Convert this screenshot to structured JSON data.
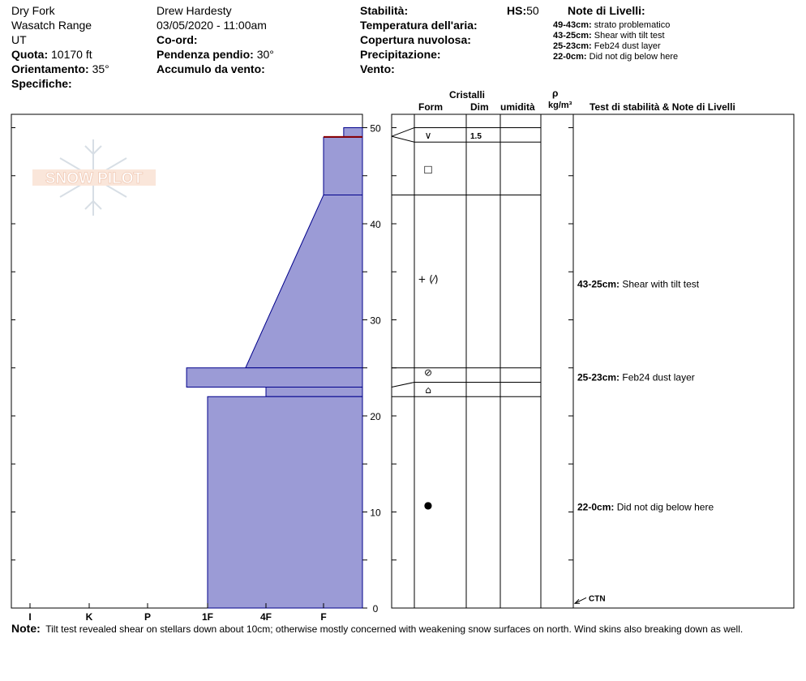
{
  "header": {
    "location": "Dry Fork",
    "range": "Wasatch Range",
    "state": "UT",
    "elevation_label": "Quota:",
    "elevation_value": "10170 ft",
    "aspect_label": "Orientamento:",
    "aspect_value": "35°",
    "specifics_label": "Specifiche:",
    "observer": "Drew Hardesty",
    "datetime": "03/05/2020 - 11:00am",
    "coord_label": "Co-ord:",
    "slope_label": "Pendenza pendio:",
    "slope_value": "30°",
    "wind_loading_label": "Accumulo da vento:",
    "stability_label": "Stabilità:",
    "air_temp_label": "Temperatura dell'aria:",
    "cloud_cover_label": "Copertura nuvolosa:",
    "precip_label": "Precipitazione:",
    "wind_label": "Vento:",
    "hs_label": "HS:",
    "hs_value": "50"
  },
  "layer_notes_panel": {
    "title": "Note di Livelli:",
    "items": [
      {
        "range": "49-43cm:",
        "text": "strato problematico"
      },
      {
        "range": "43-25cm:",
        "text": "Shear with tilt test"
      },
      {
        "range": "25-23cm:",
        "text": "Feb24 dust layer"
      },
      {
        "range": "22-0cm:",
        "text": "Did not dig below here"
      }
    ]
  },
  "table_headers": {
    "crystals": "Cristalli",
    "form": "Form",
    "size": "Dim",
    "moisture": "umidità",
    "rho": "ρ",
    "density_unit": "kg/m³",
    "stability_notes": "Test di stabilità & Note di Livelli"
  },
  "logo": {
    "text": "SNOW PILOT"
  },
  "chart_data": {
    "type": "area",
    "title": "",
    "xlabel": "",
    "ylabel": "",
    "ylim": [
      0,
      50
    ],
    "y_ticks": [
      0,
      10,
      20,
      30,
      40,
      50
    ],
    "x_categories": [
      "I",
      "K",
      "P",
      "1F",
      "4F",
      "F"
    ],
    "x_category_index": {
      "I": 0,
      "K": 1,
      "P": 2,
      "1F": 3,
      "4F": 4,
      "F": 5
    },
    "hardness_profile": [
      {
        "bottom": 49.0,
        "top": 50.0,
        "hardness_bottom": 5.35,
        "hardness_top": 5.35
      },
      {
        "bottom": 43.0,
        "top": 49.0,
        "hardness_bottom": 5.0,
        "hardness_top": 5.0
      },
      {
        "bottom": 25.0,
        "top": 43.0,
        "hardness_bottom": 3.65,
        "hardness_top": 5.0
      },
      {
        "bottom": 23.0,
        "top": 25.0,
        "hardness_bottom": 2.65,
        "hardness_top": 2.65
      },
      {
        "bottom": 22.0,
        "top": 23.0,
        "hardness_bottom": 4.0,
        "hardness_top": 4.0
      },
      {
        "bottom": 0.0,
        "top": 22.0,
        "hardness_bottom": 3.0,
        "hardness_top": 3.0
      }
    ],
    "problem_layer_line": 49.0,
    "colors": {
      "fill": "#9b9bd6",
      "stroke": "#00008b",
      "problem_line": "#8b0000"
    },
    "layer_boundaries": [
      50,
      48.5,
      43,
      25,
      23.5,
      22
    ]
  },
  "crystals": [
    {
      "height": 49.2,
      "symbol": "∨",
      "size": "1.5"
    },
    {
      "height": 45.7,
      "symbol": "□",
      "size": ""
    },
    {
      "height": 34.2,
      "symbol": "+ (⁄)",
      "size": ""
    },
    {
      "height": 24.5,
      "symbol": "⊘",
      "size": ""
    },
    {
      "height": 22.7,
      "symbol": "⌂",
      "size": ""
    },
    {
      "height": 10.7,
      "symbol": "●",
      "size": ""
    }
  ],
  "stability_notes": [
    {
      "height": 33.7,
      "range": "43-25cm:",
      "text": "Shear with tilt test"
    },
    {
      "height": 24.0,
      "range": "25-23cm:",
      "text": "Feb24 dust layer"
    },
    {
      "height": 10.5,
      "range": "22-0cm:",
      "text": "Did not dig below here"
    }
  ],
  "stability_tests": [
    {
      "height": 0.4,
      "label": "CTN"
    }
  ],
  "footer": {
    "note_label": "Note:",
    "note_text": "Tilt test revealed shear on stellars down about 10cm; otherwise mostly concerned with weakening snow surfaces on north.  Wind skins also breaking down as well."
  }
}
